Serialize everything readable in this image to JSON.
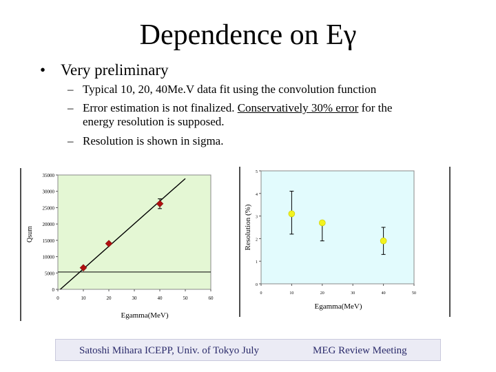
{
  "slide": {
    "title_prefix": "Dependence on E",
    "title_symbol": "γ",
    "bullet_main": "Very preliminary",
    "sub_bullets": {
      "b1": "Typical 10, 20, 40Me.V data fit using the convolution function",
      "b2_pre": "Error estimation is not finalized. ",
      "b2_underlined": "Conservatively 30% error",
      "b2_post": " for the",
      "b2_line2": "energy resolution is supposed.",
      "b3": "Resolution is shown in sigma."
    },
    "bullet_glyph": "•",
    "dash_glyph": "–"
  },
  "footer": {
    "left": "Satoshi Mihara ICEPP, Univ. of Tokyo July",
    "right": "MEG Review Meeting"
  },
  "colors": {
    "left_plot_bg": "#e4f7d4",
    "right_plot_bg": "#e2fbfd",
    "left_marker": "#b01010",
    "right_marker": "#f2f21e",
    "footer_bg": "#ebebf5"
  },
  "chart_data": [
    {
      "type": "scatter",
      "title": "",
      "xlabel": "Egamma(MeV)",
      "ylabel": "Qsum",
      "xlim": [
        0,
        60
      ],
      "ylim": [
        0,
        35000
      ],
      "x_ticks": [
        0,
        10,
        20,
        30,
        40,
        50,
        60
      ],
      "y_ticks": [
        0,
        5000,
        10000,
        15000,
        20000,
        25000,
        30000,
        35000
      ],
      "series": [
        {
          "name": "data",
          "x": [
            10,
            20,
            40
          ],
          "y": [
            6600,
            14000,
            26200
          ],
          "yerr": [
            0,
            0,
            1500
          ]
        }
      ],
      "fit_line": {
        "x": [
          0,
          50
        ],
        "y": [
          -660,
          33900
        ]
      },
      "hline": 5300
    },
    {
      "type": "scatter",
      "title": "",
      "xlabel": "Egamma(MeV)",
      "ylabel": "Resolution (%)",
      "xlim": [
        0,
        50
      ],
      "ylim": [
        0,
        5
      ],
      "x_ticks": [
        0,
        10,
        20,
        30,
        40,
        50
      ],
      "y_ticks": [
        0,
        1,
        2,
        3,
        4,
        5
      ],
      "series": [
        {
          "name": "data",
          "x": [
            10,
            20,
            40
          ],
          "y": [
            3.1,
            2.7,
            1.9
          ],
          "yerr_high": [
            4.1,
            2.7,
            2.5
          ],
          "yerr_low": [
            2.2,
            1.9,
            1.3
          ]
        }
      ]
    }
  ]
}
